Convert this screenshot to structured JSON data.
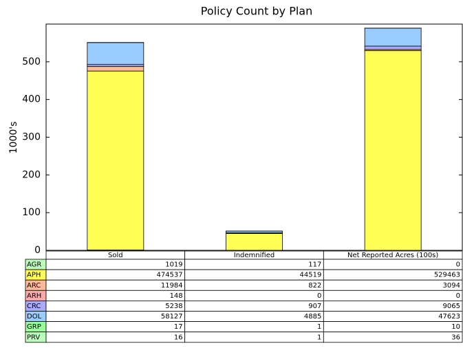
{
  "chart_data": {
    "type": "bar",
    "stacked": true,
    "title": "Policy Count by Plan",
    "ylabel": "1000's",
    "categories": [
      "Sold",
      "Indemnified",
      "Net Reported Acres (100s)"
    ],
    "series": [
      {
        "name": "AGR",
        "color": "#bbffbb",
        "values": [
          1019,
          117,
          0
        ]
      },
      {
        "name": "APH",
        "color": "#ffff55",
        "values": [
          474537,
          44519,
          529463
        ]
      },
      {
        "name": "ARC",
        "color": "#ffbb99",
        "values": [
          11984,
          822,
          3094
        ]
      },
      {
        "name": "ARH",
        "color": "#ffaaaa",
        "values": [
          148,
          0,
          0
        ]
      },
      {
        "name": "CRC",
        "color": "#aaaaff",
        "values": [
          5238,
          907,
          9065
        ]
      },
      {
        "name": "DOL",
        "color": "#99ccff",
        "values": [
          58127,
          4885,
          47623
        ]
      },
      {
        "name": "GRP",
        "color": "#99ff99",
        "values": [
          17,
          1,
          10
        ]
      },
      {
        "name": "PRV",
        "color": "#bbffbb",
        "values": [
          16,
          1,
          36
        ]
      }
    ],
    "ylim": [
      0,
      600000
    ],
    "yticks": [
      {
        "value": 0,
        "label": "0"
      },
      {
        "value": 100000,
        "label": "100"
      },
      {
        "value": 200000,
        "label": "200"
      },
      {
        "value": 300000,
        "label": "300"
      },
      {
        "value": 400000,
        "label": "400"
      },
      {
        "value": 500000,
        "label": "500"
      }
    ]
  }
}
